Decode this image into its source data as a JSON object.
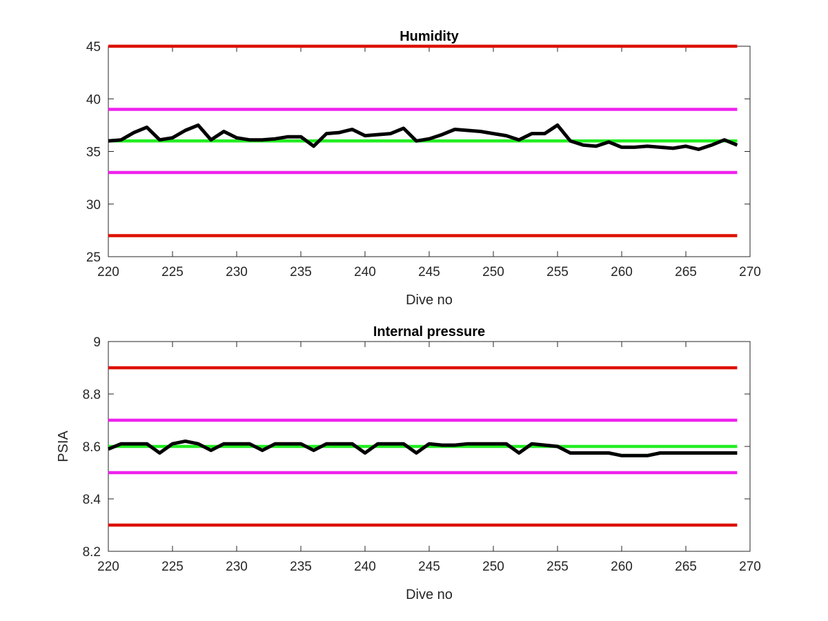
{
  "chart_data": [
    {
      "type": "line",
      "title": "Humidity",
      "xlabel": "Dive no",
      "ylabel": "",
      "xlim": [
        220,
        270
      ],
      "ylim": [
        25,
        45
      ],
      "xticks": [
        "220",
        "225",
        "230",
        "235",
        "240",
        "245",
        "250",
        "255",
        "260",
        "265",
        "270"
      ],
      "yticks": [
        "25",
        "30",
        "35",
        "40",
        "45"
      ],
      "grid": false,
      "series": [
        {
          "color": "#000000",
          "x": [
            220,
            221,
            222,
            223,
            224,
            225,
            226,
            227,
            228,
            229,
            230,
            231,
            232,
            233,
            234,
            235,
            236,
            237,
            238,
            239,
            240,
            241,
            242,
            243,
            244,
            245,
            246,
            247,
            248,
            249,
            250,
            251,
            252,
            253,
            254,
            255,
            256,
            257,
            258,
            259,
            260,
            261,
            262,
            263,
            264,
            265,
            266,
            267,
            268,
            269
          ],
          "y": [
            36.0,
            36.1,
            36.8,
            37.3,
            36.1,
            36.3,
            37.0,
            37.5,
            36.1,
            36.9,
            36.3,
            36.1,
            36.1,
            36.2,
            36.4,
            36.4,
            35.5,
            36.7,
            36.8,
            37.1,
            36.5,
            36.6,
            36.7,
            37.2,
            36.0,
            36.2,
            36.6,
            37.1,
            37.0,
            36.9,
            36.7,
            36.5,
            36.1,
            36.7,
            36.7,
            37.5,
            36.0,
            35.6,
            35.5,
            35.9,
            35.4,
            35.4,
            35.5,
            35.4,
            35.3,
            35.5,
            35.2,
            35.6,
            36.1,
            35.6
          ]
        },
        {
          "color": "#dd1100",
          "x": [
            220,
            269
          ],
          "y": [
            45,
            45
          ]
        },
        {
          "color": "#ee22ee",
          "x": [
            220,
            269
          ],
          "y": [
            39,
            39
          ]
        },
        {
          "color": "#22ee22",
          "x": [
            220,
            269
          ],
          "y": [
            36,
            36
          ]
        },
        {
          "color": "#ee22ee",
          "x": [
            220,
            269
          ],
          "y": [
            33,
            33
          ]
        },
        {
          "color": "#dd1100",
          "x": [
            220,
            269
          ],
          "y": [
            27,
            27
          ]
        }
      ]
    },
    {
      "type": "line",
      "title": "Internal pressure",
      "xlabel": "Dive no",
      "ylabel": "PSIA",
      "xlim": [
        220,
        270
      ],
      "ylim": [
        8.2,
        9.0
      ],
      "xticks": [
        "220",
        "225",
        "230",
        "235",
        "240",
        "245",
        "250",
        "255",
        "260",
        "265",
        "270"
      ],
      "yticks": [
        "8.2",
        "8.4",
        "8.6",
        "8.8",
        "9"
      ],
      "grid": false,
      "series": [
        {
          "color": "#000000",
          "x": [
            220,
            221,
            222,
            223,
            224,
            225,
            226,
            227,
            228,
            229,
            230,
            231,
            232,
            233,
            234,
            235,
            236,
            237,
            238,
            239,
            240,
            241,
            242,
            243,
            244,
            245,
            246,
            247,
            248,
            249,
            250,
            251,
            252,
            253,
            254,
            255,
            256,
            257,
            258,
            259,
            260,
            261,
            262,
            263,
            264,
            265,
            266,
            267,
            268,
            269
          ],
          "y": [
            8.59,
            8.61,
            8.61,
            8.61,
            8.575,
            8.61,
            8.62,
            8.61,
            8.585,
            8.61,
            8.61,
            8.61,
            8.585,
            8.61,
            8.61,
            8.61,
            8.585,
            8.61,
            8.61,
            8.61,
            8.575,
            8.61,
            8.61,
            8.61,
            8.575,
            8.61,
            8.605,
            8.605,
            8.61,
            8.61,
            8.61,
            8.61,
            8.575,
            8.61,
            8.605,
            8.6,
            8.575,
            8.575,
            8.575,
            8.575,
            8.565,
            8.565,
            8.565,
            8.575,
            8.575,
            8.575,
            8.575,
            8.575,
            8.575,
            8.575
          ]
        },
        {
          "color": "#dd1100",
          "x": [
            220,
            269
          ],
          "y": [
            8.9,
            8.9
          ]
        },
        {
          "color": "#ee22ee",
          "x": [
            220,
            269
          ],
          "y": [
            8.7,
            8.7
          ]
        },
        {
          "color": "#22ee22",
          "x": [
            220,
            269
          ],
          "y": [
            8.6,
            8.6
          ]
        },
        {
          "color": "#ee22ee",
          "x": [
            220,
            269
          ],
          "y": [
            8.5,
            8.5
          ]
        },
        {
          "color": "#dd1100",
          "x": [
            220,
            269
          ],
          "y": [
            8.3,
            8.3
          ]
        }
      ]
    }
  ]
}
